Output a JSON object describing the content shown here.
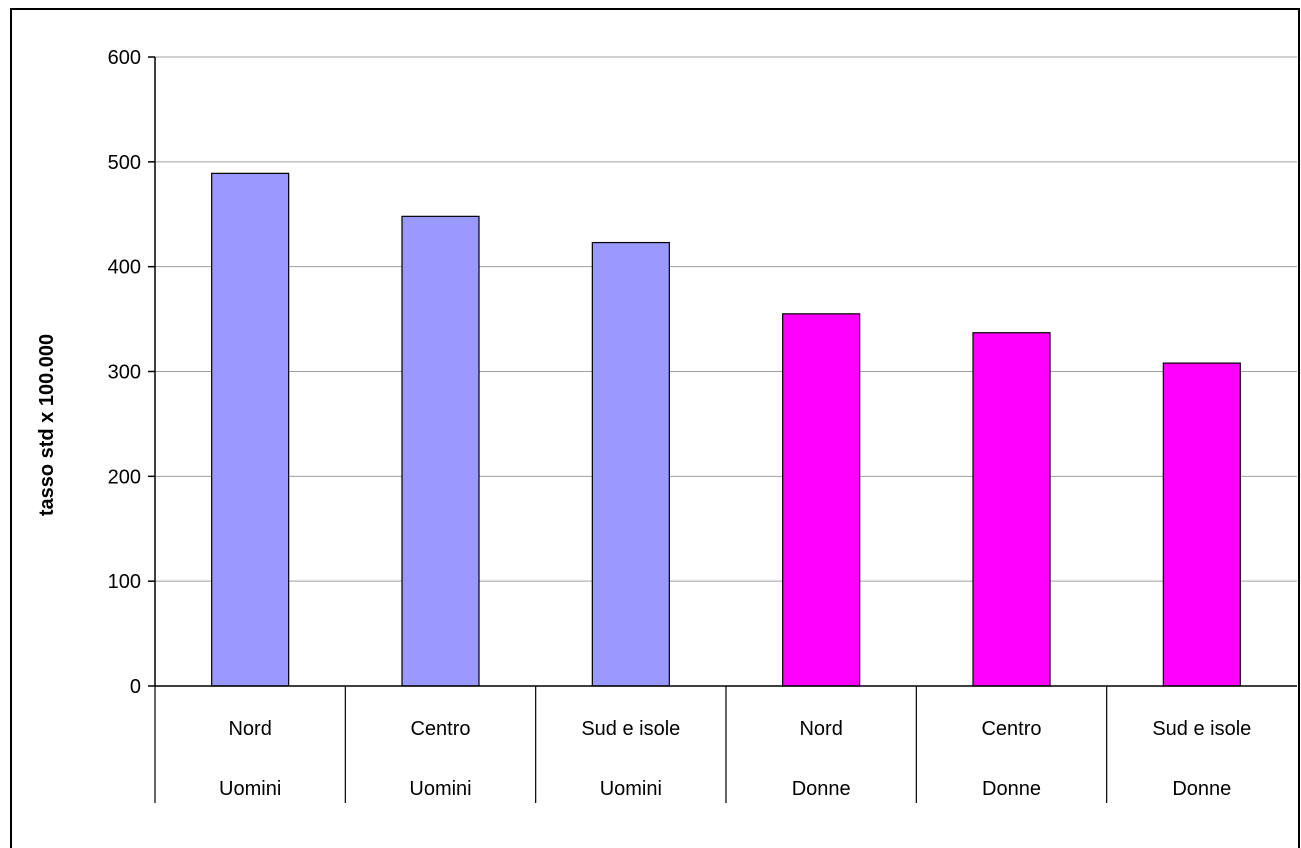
{
  "chart_data": {
    "type": "bar",
    "ylabel": "tasso std x 100.000",
    "ylim": [
      0,
      600
    ],
    "yticks": [
      0,
      100,
      200,
      300,
      400,
      500,
      600
    ],
    "grid": true,
    "categories": [
      {
        "region": "Nord",
        "group": "Uomini",
        "value": 489,
        "color": "#9999FF"
      },
      {
        "region": "Centro",
        "group": "Uomini",
        "value": 448,
        "color": "#9999FF"
      },
      {
        "region": "Sud e isole",
        "group": "Uomini",
        "value": 423,
        "color": "#9999FF"
      },
      {
        "region": "Nord",
        "group": "Donne",
        "value": 355,
        "color": "#FF00FF"
      },
      {
        "region": "Centro",
        "group": "Donne",
        "value": 337,
        "color": "#FF00FF"
      },
      {
        "region": "Sud e isole",
        "group": "Donne",
        "value": 308,
        "color": "#FF00FF"
      }
    ]
  }
}
